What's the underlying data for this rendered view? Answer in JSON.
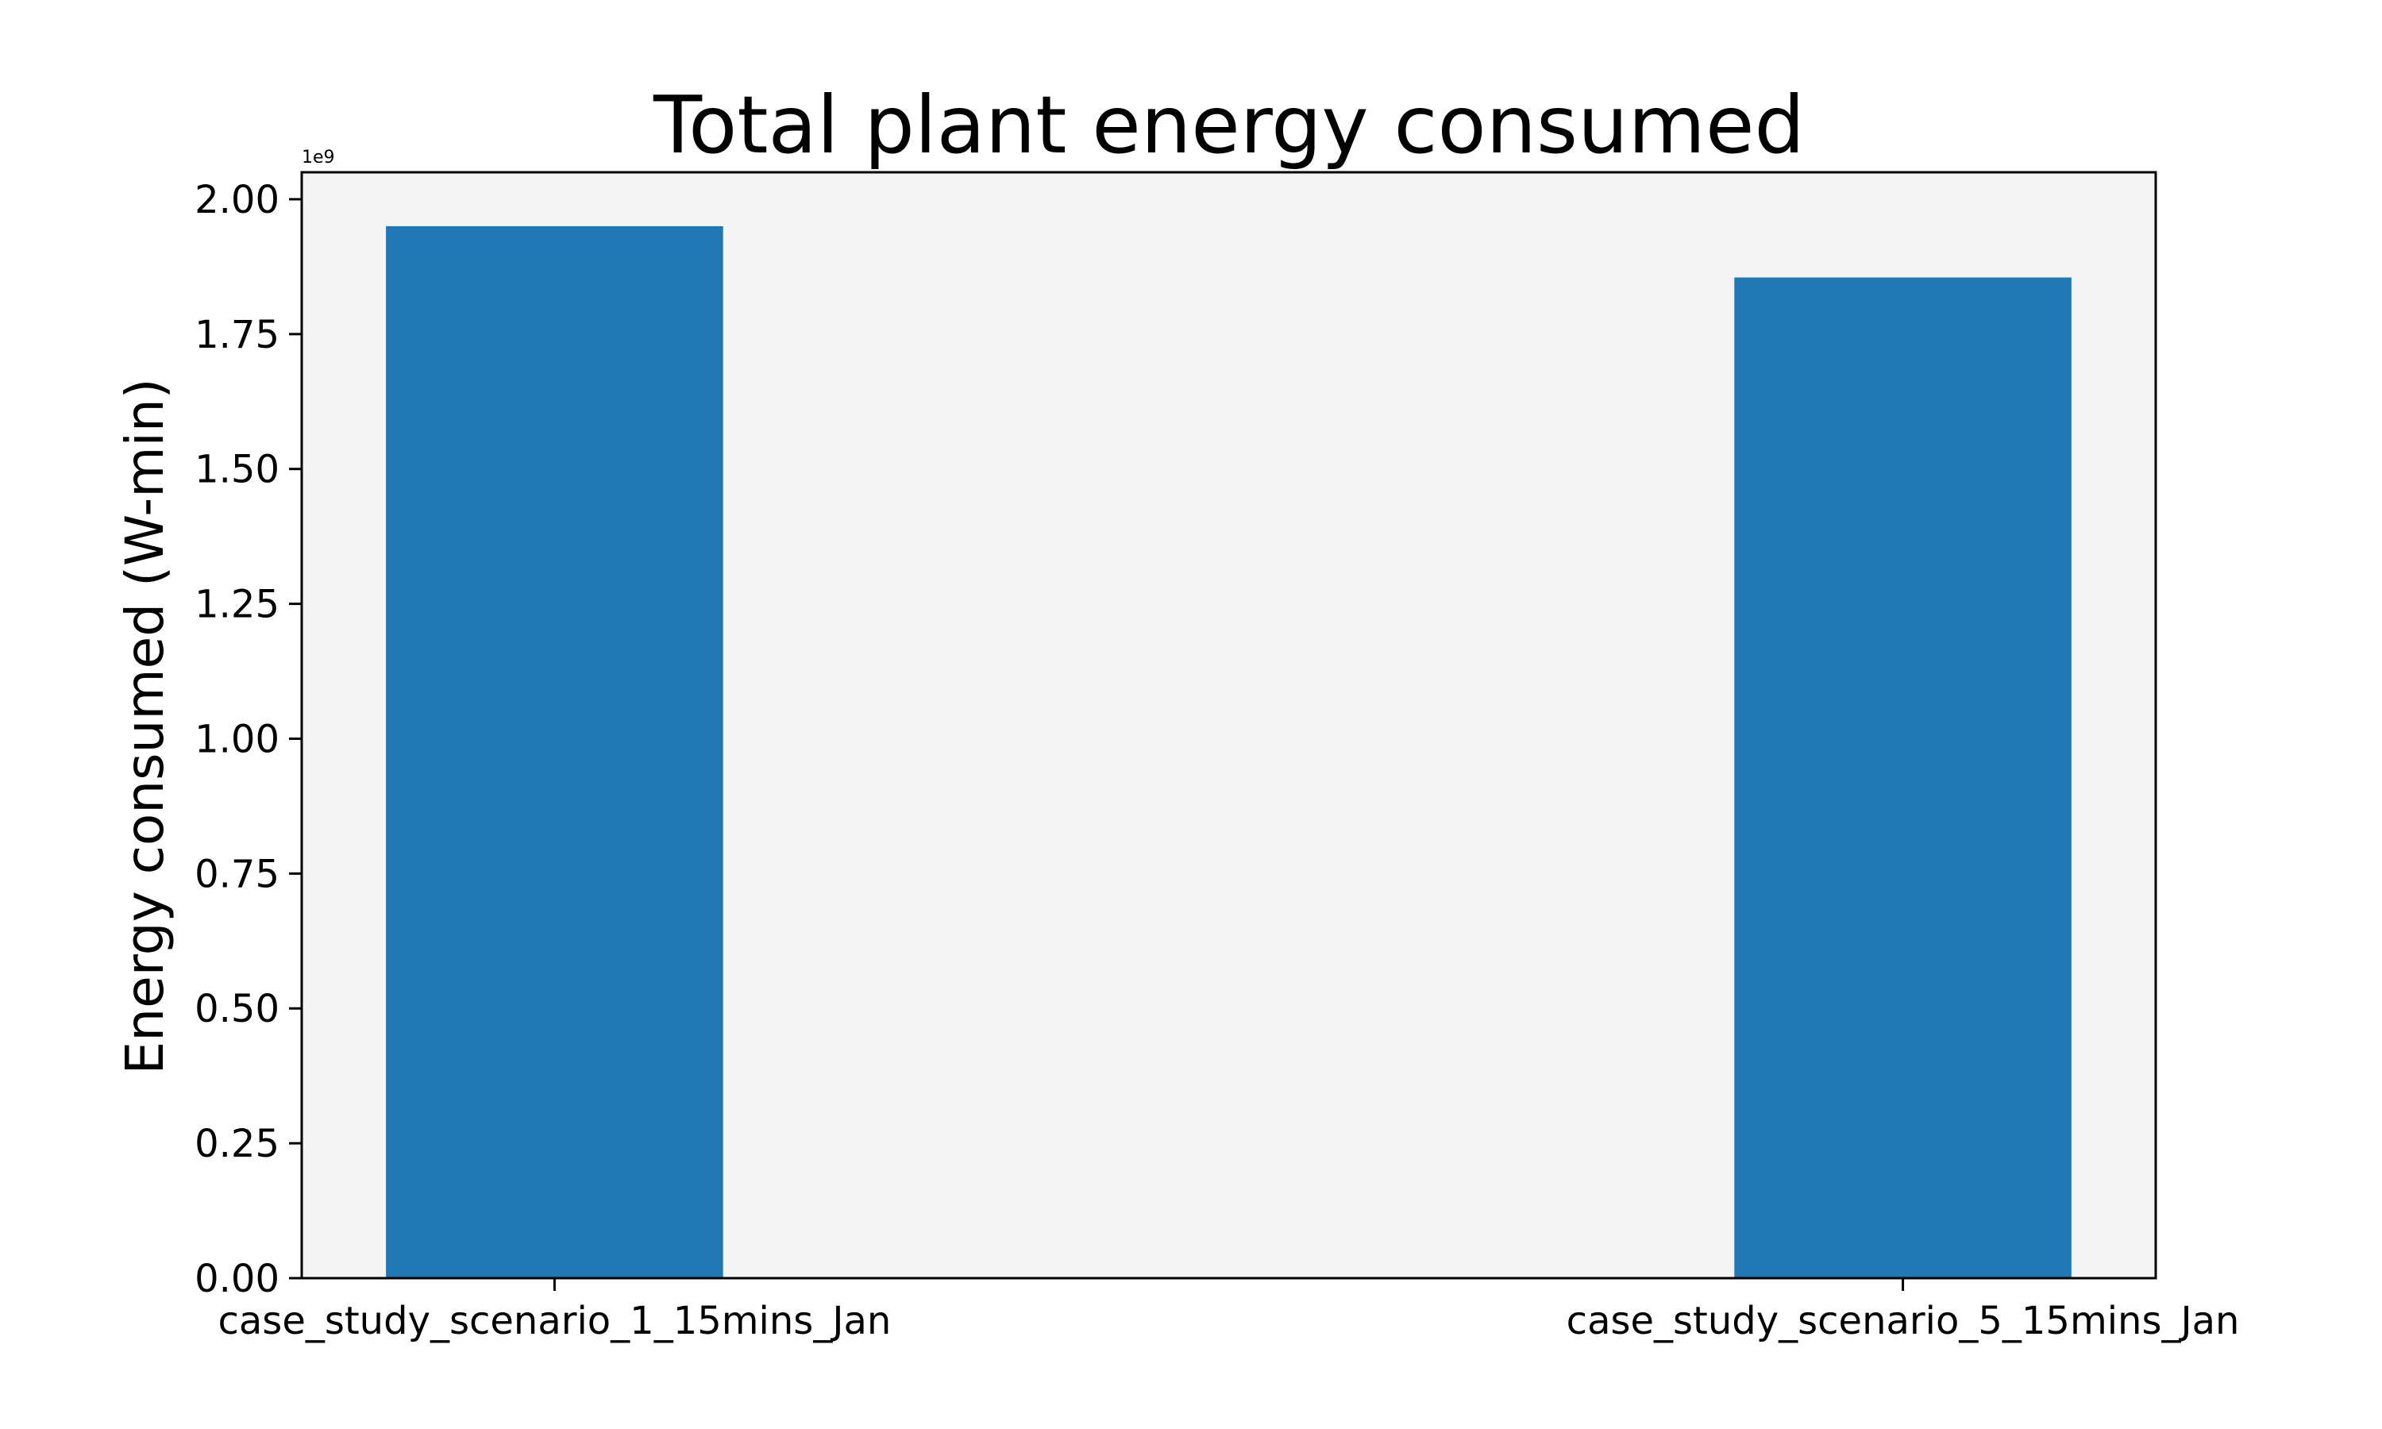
{
  "chart_data": {
    "type": "bar",
    "title": "Total plant energy consumed",
    "xlabel": "",
    "ylabel": "Energy consumed (W-min)",
    "categories": [
      "case_study_scenario_1_15mins_Jan",
      "case_study_scenario_5_15mins_Jan"
    ],
    "values": [
      1950000000,
      1855000000
    ],
    "ylim": [
      0,
      2050000000
    ],
    "yticks": [
      0,
      0.25,
      0.5,
      0.75,
      1.0,
      1.25,
      1.5,
      1.75,
      2.0
    ],
    "ytick_labels": [
      "0.00",
      "0.25",
      "0.50",
      "0.75",
      "1.00",
      "1.25",
      "1.50",
      "1.75",
      "2.00"
    ],
    "y_offset_label": "1e9",
    "grid": false,
    "bar_color": "#1f77b4",
    "plot_background": "#f4f4f4"
  }
}
